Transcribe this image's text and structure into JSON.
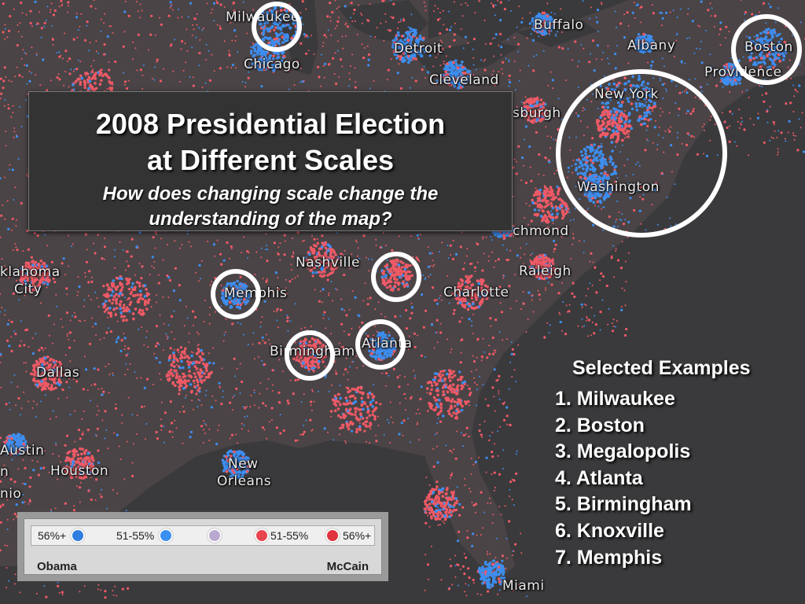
{
  "title": {
    "line1": "2008 Presidential Election",
    "line2": "at Different Scales",
    "subtitle1": "How does changing scale change the",
    "subtitle2": "understanding of the map?"
  },
  "cities": [
    {
      "name": "Milwaukee"
    },
    {
      "name": "Chicago"
    },
    {
      "name": "Detroit"
    },
    {
      "name": "Cleveland"
    },
    {
      "name": "Buffalo"
    },
    {
      "name": "Albany"
    },
    {
      "name": "Boston"
    },
    {
      "name": "Providence"
    },
    {
      "name": "New York"
    },
    {
      "name": "Washington"
    },
    {
      "name": "sburgh"
    },
    {
      "name": "chmond"
    },
    {
      "name": "Raleigh"
    },
    {
      "name": "Charlotte"
    },
    {
      "name": "Nashville"
    },
    {
      "name": "Memphis"
    },
    {
      "name": "Birmingham"
    },
    {
      "name": "Atlanta"
    },
    {
      "name": "Dallas"
    },
    {
      "name": "Houston"
    },
    {
      "name": "Austin"
    },
    {
      "name": "New"
    },
    {
      "name": "Orleans"
    },
    {
      "name": "Miami"
    },
    {
      "name": "klahoma"
    },
    {
      "name": "City"
    },
    {
      "name": "nio"
    },
    {
      "name": "n"
    }
  ],
  "examples": {
    "heading": "Selected Examples",
    "items": [
      "1. Milwaukee",
      "2. Boston",
      "3. Megalopolis",
      "4. Atlanta",
      "5. Birmingham",
      "6. Knoxville",
      "7. Memphis"
    ]
  },
  "legend": {
    "items": [
      {
        "label": "56%+",
        "color": "#2f7de0"
      },
      {
        "label": "51-55%",
        "color": "#3a8ff0"
      },
      {
        "label": "",
        "color": "#b9a9cf"
      },
      {
        "label": "51-55%",
        "color": "#e8454e"
      },
      {
        "label": "56%+",
        "color": "#e0343f"
      }
    ],
    "left_candidate": "Obama",
    "right_candidate": "McCain"
  },
  "colors": {
    "background": "#3a3a3c",
    "democrat": "#3d8ef0",
    "republican": "#ef5a66",
    "ring": "#ffffff"
  }
}
